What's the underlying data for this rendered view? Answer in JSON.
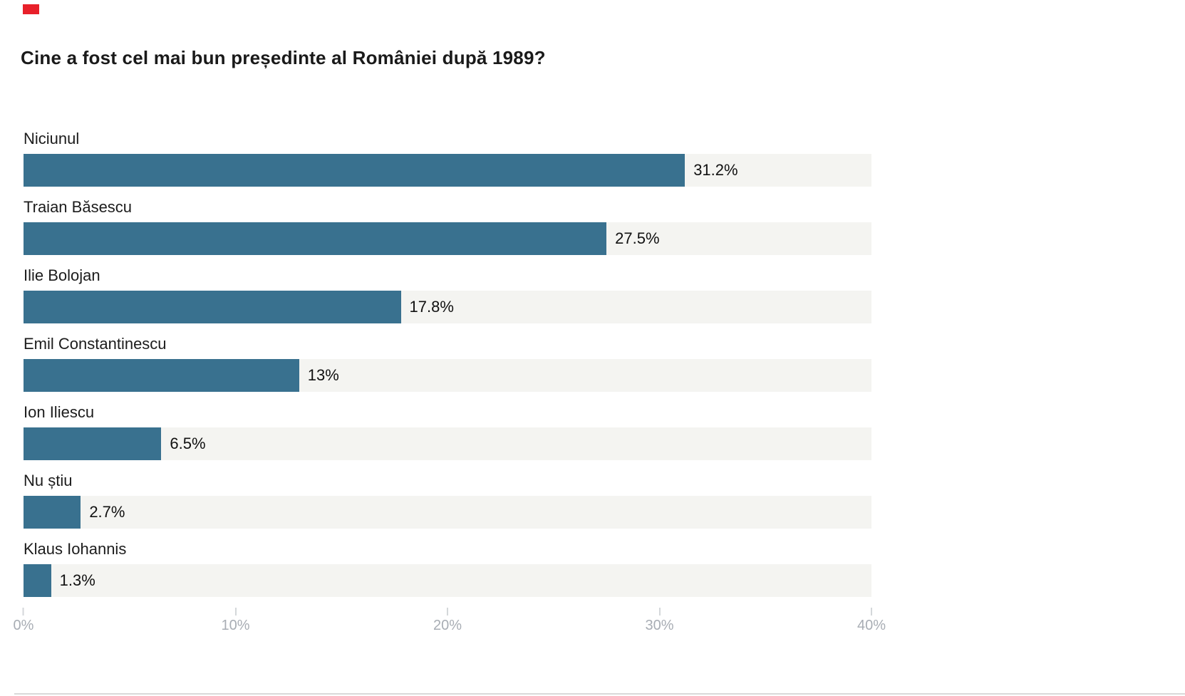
{
  "page": {
    "title": "Cine a fost cel mai bun președinte al României după 1989?"
  },
  "chart_data": {
    "type": "bar",
    "orientation": "horizontal",
    "title": "Cine a fost cel mai bun președinte al României după 1989?",
    "categories": [
      "Niciunul",
      "Traian Băsescu",
      "Ilie Bolojan",
      "Emil Constantinescu",
      "Ion Iliescu",
      "Nu știu",
      "Klaus Iohannis"
    ],
    "values": [
      31.2,
      27.5,
      17.8,
      13,
      6.5,
      2.7,
      1.3
    ],
    "value_labels": [
      "31.2%",
      "27.5%",
      "17.8%",
      "13%",
      "6.5%",
      "2.7%",
      "1.3%"
    ],
    "xlabel": "",
    "ylabel": "",
    "xlim": [
      0,
      40
    ],
    "x_ticks": [
      "0%",
      "10%",
      "20%",
      "30%",
      "40%"
    ],
    "x_tick_values": [
      0,
      10,
      20,
      30,
      40
    ],
    "grid": false,
    "legend": false,
    "colors": {
      "bar_fill": "#39718f",
      "bar_track": "#f4f4f1",
      "title_text": "#1a1a1a",
      "category_text": "#1c1c1c",
      "value_text": "#111111",
      "axis_text": "#a8adb4",
      "tick_mark": "#d4d7da",
      "separator_line": "#d9d9d9",
      "corner_marker": "#e8202a",
      "background": "#ffffff"
    }
  }
}
